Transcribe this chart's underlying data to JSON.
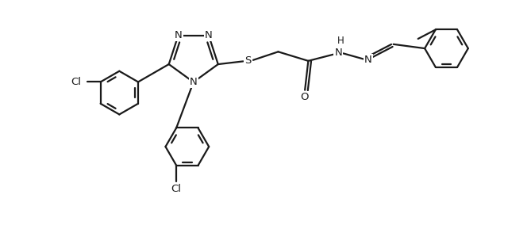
{
  "background_color": "#ffffff",
  "line_color": "#1a1a1a",
  "line_width": 1.6,
  "font_size": 9.5,
  "fig_width": 6.4,
  "fig_height": 2.84,
  "dpi": 100,
  "xlim": [
    0,
    10.5
  ],
  "ylim": [
    -3.2,
    2.2
  ]
}
